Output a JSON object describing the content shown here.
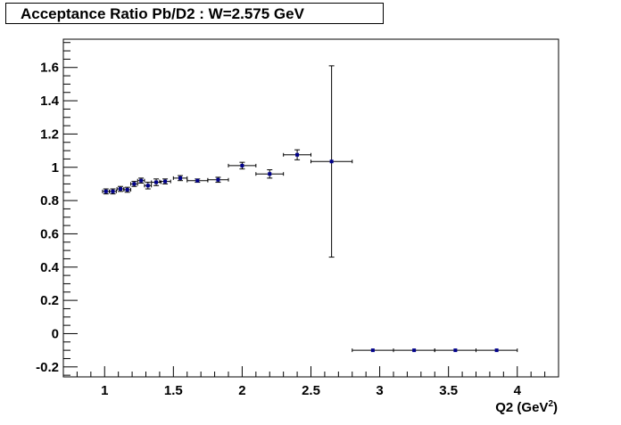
{
  "chart_data": {
    "type": "scatter",
    "title": "Acceptance Ratio Pb/D2 : W=2.575 GeV",
    "xlabel": "Q2 (GeV",
    "xlabel_sup": "2",
    "xlabel_end": ")",
    "ylabel": "",
    "xlim": [
      0.7,
      4.3
    ],
    "ylim": [
      -0.26,
      1.77
    ],
    "grid": false,
    "xticks": [
      1,
      1.5,
      2,
      2.5,
      3,
      3.5,
      4
    ],
    "xtick_labels": [
      "1",
      "1.5",
      "2",
      "2.5",
      "3",
      "3.5",
      "4"
    ],
    "yticks": [
      -0.2,
      0,
      0.2,
      0.4,
      0.6,
      0.8,
      1,
      1.2,
      1.4,
      1.6
    ],
    "ytick_labels": [
      "-0.2",
      "0",
      "0.2",
      "0.4",
      "0.6",
      "0.8",
      "1",
      "1.2",
      "1.4",
      "1.6"
    ],
    "marker_color": "#00008b",
    "points": [
      {
        "x": 1.01,
        "y": 0.855,
        "xerr": 0.025,
        "yerr": 0.015
      },
      {
        "x": 1.06,
        "y": 0.855,
        "xerr": 0.025,
        "yerr": 0.015
      },
      {
        "x": 1.115,
        "y": 0.87,
        "xerr": 0.025,
        "yerr": 0.015
      },
      {
        "x": 1.165,
        "y": 0.865,
        "xerr": 0.025,
        "yerr": 0.015
      },
      {
        "x": 1.215,
        "y": 0.9,
        "xerr": 0.025,
        "yerr": 0.015
      },
      {
        "x": 1.265,
        "y": 0.92,
        "xerr": 0.025,
        "yerr": 0.015
      },
      {
        "x": 1.315,
        "y": 0.89,
        "xerr": 0.025,
        "yerr": 0.02
      },
      {
        "x": 1.375,
        "y": 0.91,
        "xerr": 0.035,
        "yerr": 0.02
      },
      {
        "x": 1.44,
        "y": 0.915,
        "xerr": 0.04,
        "yerr": 0.015
      },
      {
        "x": 1.55,
        "y": 0.935,
        "xerr": 0.05,
        "yerr": 0.015
      },
      {
        "x": 1.675,
        "y": 0.92,
        "xerr": 0.075,
        "yerr": 0.01
      },
      {
        "x": 1.825,
        "y": 0.925,
        "xerr": 0.075,
        "yerr": 0.015
      },
      {
        "x": 2.0,
        "y": 1.01,
        "xerr": 0.1,
        "yerr": 0.02
      },
      {
        "x": 2.2,
        "y": 0.96,
        "xerr": 0.1,
        "yerr": 0.025
      },
      {
        "x": 2.4,
        "y": 1.075,
        "xerr": 0.1,
        "yerr": 0.03
      },
      {
        "x": 2.65,
        "y": 1.035,
        "xerr": 0.15,
        "yerr": 0.575
      },
      {
        "x": 2.95,
        "y": -0.1,
        "xerr": 0.15,
        "yerr": 0
      },
      {
        "x": 3.25,
        "y": -0.1,
        "xerr": 0.15,
        "yerr": 0
      },
      {
        "x": 3.55,
        "y": -0.1,
        "xerr": 0.15,
        "yerr": 0
      },
      {
        "x": 3.85,
        "y": -0.1,
        "xerr": 0.15,
        "yerr": 0
      }
    ]
  }
}
